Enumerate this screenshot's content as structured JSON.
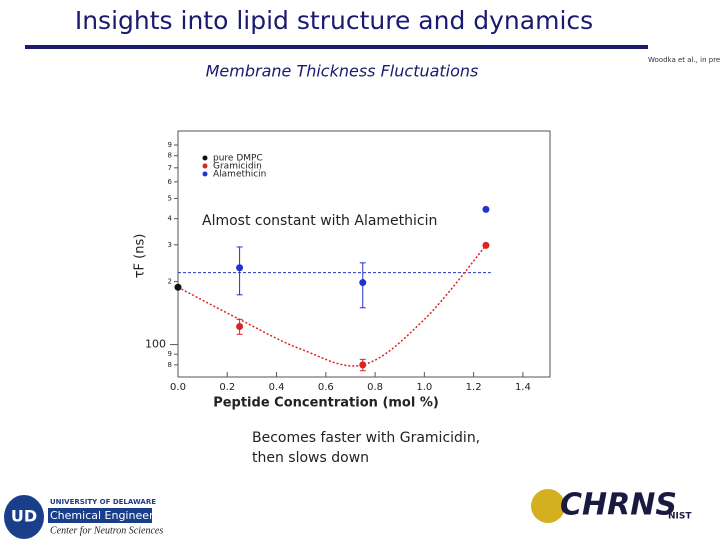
{
  "slide": {
    "title": "Insights into lipid structure and dynamics",
    "citation": "Woodka et al., in preparation.",
    "logo_left": {
      "initials": "UD",
      "university": "UNIVERSITY OF DELAWARE",
      "department": "Chemical Engineering",
      "center": "Center for Neutron Sciences"
    },
    "logo_right": {
      "name": "CHRNS",
      "org": "NIST"
    }
  },
  "chart_data": {
    "type": "scatter",
    "title": "Membrane Thickness Fluctuations",
    "x_label": "Peptide Concentration (mol %)",
    "y_label": "τF (ns)",
    "log_scale": true,
    "xlim": [
      0,
      1.51
    ],
    "ylim": [
      70,
      1050
    ],
    "xticks": [
      {
        "value": 0,
        "label": "0.0"
      },
      {
        "value": 0.2,
        "label": "0.2"
      },
      {
        "value": 0.4,
        "label": "0.4"
      },
      {
        "value": 0.6,
        "label": "0.6"
      },
      {
        "value": 0.8,
        "label": "0.8"
      },
      {
        "value": 1.0,
        "label": "1.0"
      },
      {
        "value": 1.2,
        "label": "1.2"
      },
      {
        "value": 1.4,
        "label": "1.4"
      }
    ],
    "yticks": [
      {
        "value": 80,
        "label": "8"
      },
      {
        "value": 90,
        "label": "9"
      },
      100,
      {
        "value": 200,
        "label": "2"
      },
      {
        "value": 300,
        "label": "3"
      },
      {
        "value": 400,
        "label": "4"
      },
      {
        "value": 500,
        "label": "5"
      },
      {
        "value": 600,
        "label": "6"
      },
      {
        "value": 700,
        "label": "7"
      },
      {
        "value": 800,
        "label": "8"
      },
      {
        "value": 900,
        "label": "9"
      }
    ],
    "series": [
      {
        "name": "pure DMPC",
        "color": "#111111",
        "x": [
          0
        ],
        "values": [
          188
        ],
        "errors": [
          null
        ]
      },
      {
        "name": "Gramicidin",
        "color": "#dd2222",
        "x": [
          0.25,
          0.75,
          1.25
        ],
        "values": [
          122,
          80,
          298
        ],
        "errors": [
          10,
          5,
          null
        ]
      },
      {
        "name": "Alamethicin",
        "color": "#2233cc",
        "x": [
          0.25,
          0.75,
          1.25
        ],
        "values": [
          233,
          198,
          443
        ],
        "errors": [
          60,
          48,
          null
        ]
      }
    ],
    "fit_curve": {
      "color": "#dd2222",
      "x": [
        0,
        0.25,
        0.5,
        0.75,
        1.0,
        1.25
      ],
      "values": [
        188,
        132,
        95,
        80,
        132,
        298
      ]
    },
    "reference_line": {
      "color": "#2233cc",
      "value": 221
    },
    "annotations": [
      "Almost constant with Alamethicin",
      "Becomes faster with Gramicidin,",
      "then slows down"
    ]
  }
}
